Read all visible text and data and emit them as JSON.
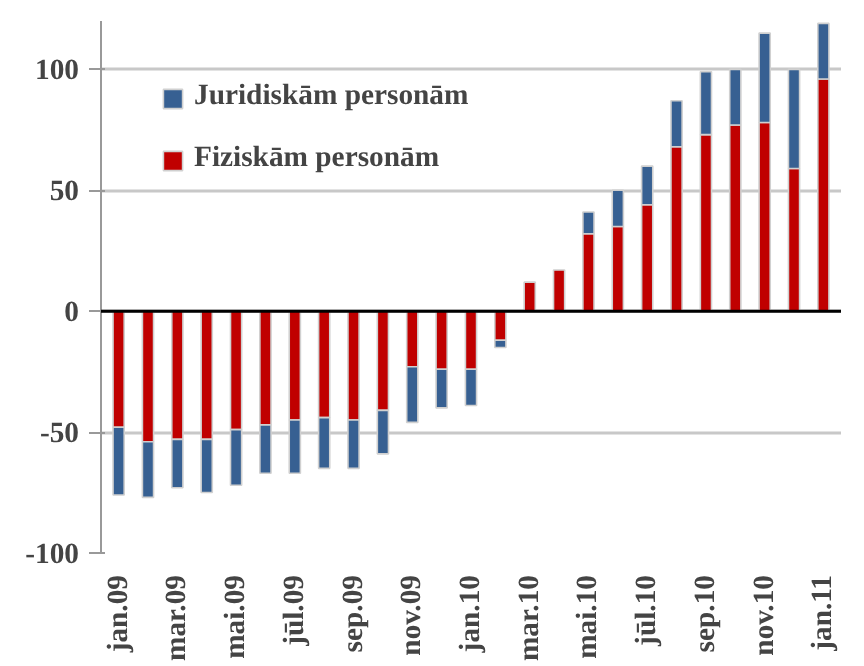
{
  "chart_data": {
    "type": "bar",
    "stacked": true,
    "categories": [
      "jan.09",
      null,
      "mar.09",
      null,
      "mai.09",
      null,
      "jūl.09",
      null,
      "sep.09",
      null,
      "nov.09",
      null,
      "jan.10",
      null,
      "mar.10",
      null,
      "mai.10",
      null,
      "jūl.10",
      null,
      "sep.10",
      null,
      "nov.10",
      null,
      "jan.11"
    ],
    "series": [
      {
        "name": "Fiziskām personām",
        "color": "#c00000",
        "values": [
          -48,
          -54,
          -53,
          -53,
          -49,
          -47,
          -45,
          -44,
          -45,
          -41,
          -23,
          -24,
          -24,
          -12,
          12,
          17,
          32,
          35,
          44,
          68,
          73,
          77,
          78,
          59,
          96
        ]
      },
      {
        "name": "Juridiskām personām",
        "color": "#376092",
        "values": [
          -28,
          -23,
          -20,
          -22,
          -23,
          -20,
          -22,
          -21,
          -20,
          -18,
          -23,
          -16,
          -15,
          -3,
          null,
          null,
          9,
          15,
          16,
          19,
          26,
          23,
          37,
          41,
          23
        ]
      }
    ],
    "ylim": [
      -100,
      120
    ],
    "yticks": [
      -100,
      -50,
      0,
      50,
      100
    ],
    "grid": "y",
    "legend": "top left"
  }
}
